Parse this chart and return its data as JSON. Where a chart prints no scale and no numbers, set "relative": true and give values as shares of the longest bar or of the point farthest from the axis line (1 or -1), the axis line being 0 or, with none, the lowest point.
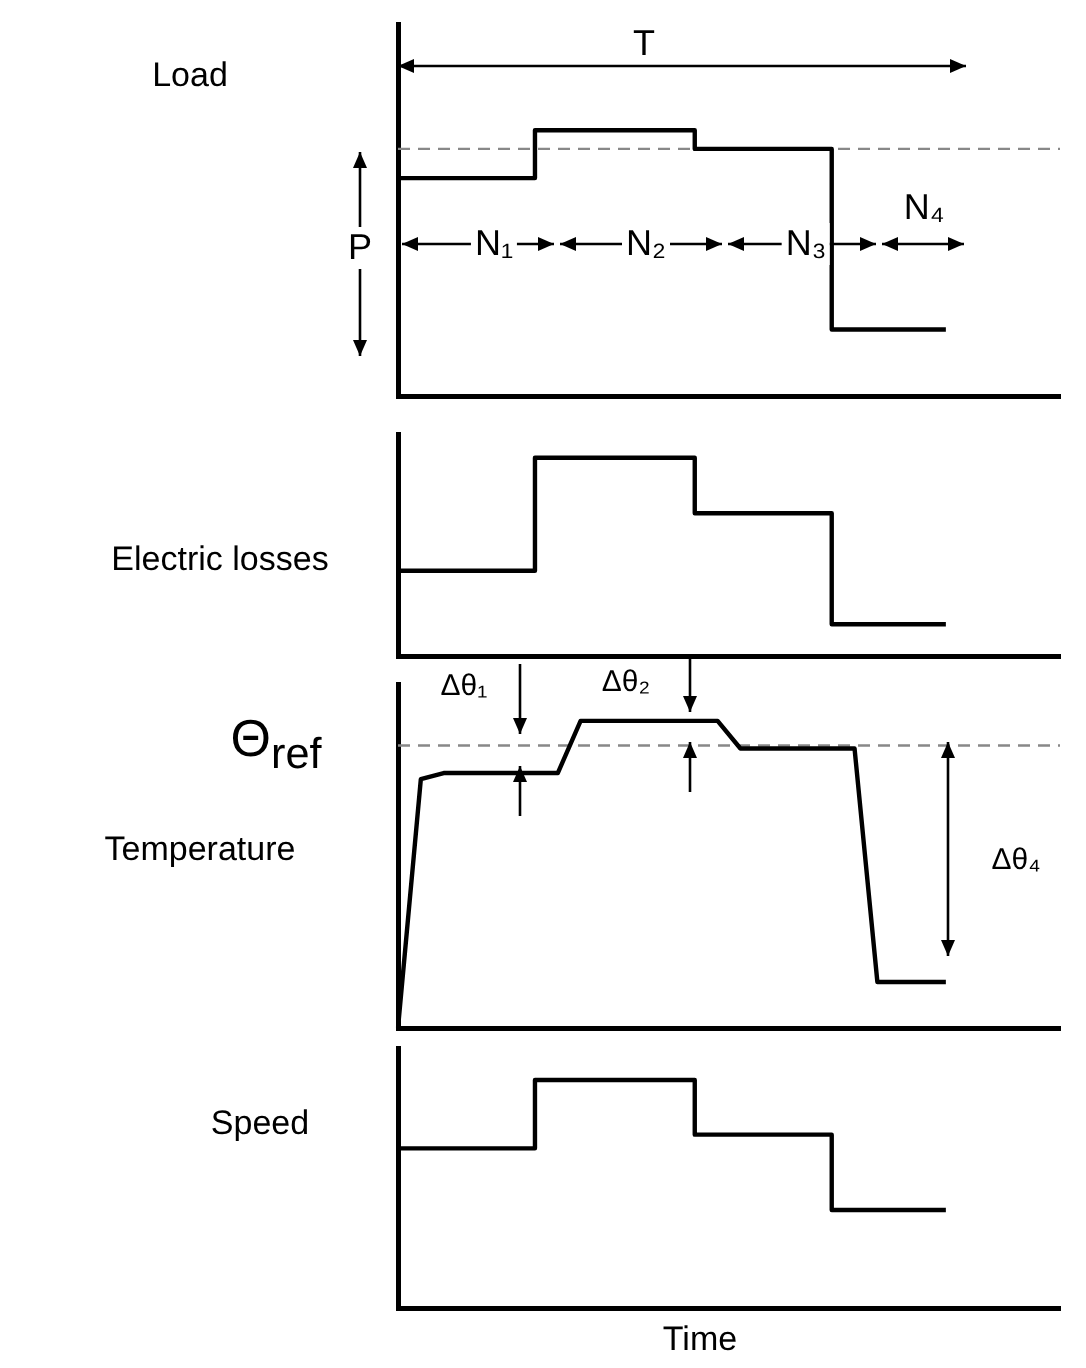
{
  "chart_data": [
    {
      "type": "step",
      "ylabel": "Load",
      "relative": true,
      "color": "#000000",
      "line_style": "solid",
      "categories": [
        null,
        null,
        null,
        null,
        null,
        null,
        null,
        null,
        null,
        null,
        null,
        null,
        null,
        null,
        null,
        null,
        null,
        null,
        null,
        null,
        null,
        null,
        null,
        null,
        null,
        null,
        null,
        null,
        null,
        null
      ],
      "values": [
        0.82,
        0.82,
        0.82,
        0.82,
        0.82,
        0.82,
        0.82,
        1,
        1,
        1,
        1,
        1,
        1,
        1,
        0.93,
        0.93,
        0.93,
        0.93,
        0.93,
        0.93,
        0.25,
        0.25,
        0.25,
        0.25,
        0.25,
        null,
        null,
        null,
        null,
        null
      ],
      "ref_lines": [
        {
          "axis": "y",
          "value": 0.93,
          "line_style": "dashed",
          "color": "#888888"
        }
      ],
      "annotations": [
        "T",
        "N₁",
        "N₂",
        "N₃",
        "N₄",
        "P"
      ]
    },
    {
      "type": "step",
      "ylabel": "Electric losses",
      "relative": true,
      "color": "#000000",
      "line_style": "solid",
      "categories": [
        null,
        null,
        null,
        null,
        null,
        null,
        null,
        null,
        null,
        null,
        null,
        null,
        null,
        null,
        null,
        null,
        null,
        null,
        null,
        null,
        null,
        null,
        null,
        null,
        null,
        null,
        null,
        null,
        null,
        null
      ],
      "values": [
        0.43,
        0.43,
        0.43,
        0.43,
        0.43,
        0.43,
        0.43,
        1,
        1,
        1,
        1,
        1,
        1,
        1,
        0.72,
        0.72,
        0.72,
        0.72,
        0.72,
        0.72,
        0.16,
        0.16,
        0.16,
        0.16,
        0.16,
        null,
        null,
        null,
        null,
        null
      ]
    },
    {
      "type": "line",
      "ylabel": "Temperature",
      "relative": true,
      "color": "#000000",
      "line_style": "solid",
      "categories": [
        null,
        null,
        null,
        null,
        null,
        null,
        null,
        null,
        null,
        null,
        null,
        null,
        null,
        null,
        null,
        null,
        null,
        null,
        null,
        null,
        null,
        null,
        null,
        null,
        null,
        null,
        null,
        null,
        null,
        null
      ],
      "values": [
        0,
        0.81,
        0.83,
        0.83,
        0.83,
        0.83,
        0.83,
        0.83,
        1,
        1,
        1,
        1,
        1,
        1,
        1,
        0.91,
        0.91,
        0.91,
        0.91,
        0.91,
        0.91,
        0.15,
        0.15,
        0.15,
        0.15,
        null,
        null,
        null,
        null,
        null
      ],
      "ref_lines": [
        {
          "axis": "y",
          "value": 0.92,
          "line_style": "dashed",
          "color": "#888888"
        }
      ],
      "annotations": [
        "Θ$_{ref}$",
        "Δθ₁",
        "Δθ₂",
        "Δθ₄"
      ]
    },
    {
      "type": "step",
      "ylabel": "Speed",
      "xlabel": "Time",
      "relative": true,
      "color": "#000000",
      "line_style": "solid",
      "categories": [
        null,
        null,
        null,
        null,
        null,
        null,
        null,
        null,
        null,
        null,
        null,
        null,
        null,
        null,
        null,
        null,
        null,
        null,
        null,
        null,
        null,
        null,
        null,
        null,
        null,
        null,
        null,
        null,
        null,
        null
      ],
      "values": [
        0.7,
        0.7,
        0.7,
        0.7,
        0.7,
        0.7,
        0.7,
        1,
        1,
        1,
        1,
        1,
        1,
        1,
        0.76,
        0.76,
        0.76,
        0.76,
        0.76,
        0.76,
        0.43,
        0.43,
        0.43,
        0.43,
        0.43,
        null,
        null,
        null,
        null,
        null
      ]
    }
  ]
}
